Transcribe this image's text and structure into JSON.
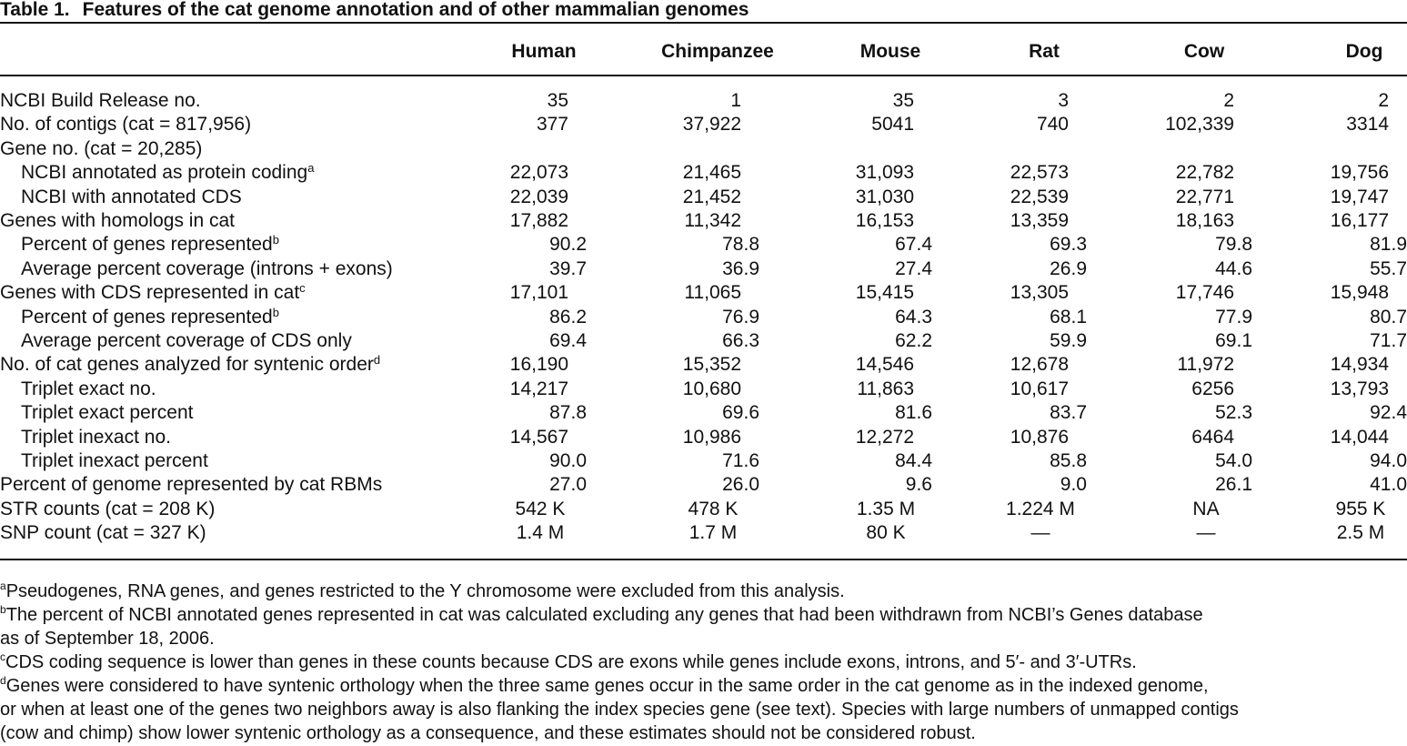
{
  "caption": {
    "label": "Table 1.",
    "title": "Features of the cat genome annotation and of other mammalian genomes"
  },
  "columns": [
    "Human",
    "Chimpanzee",
    "Mouse",
    "Rat",
    "Cow",
    "Dog"
  ],
  "rows": [
    {
      "label": "NCBI Build Release no.",
      "sup": "",
      "indent": false,
      "values": [
        "35",
        "1",
        "35",
        "3",
        "2",
        "2"
      ]
    },
    {
      "label": "No. of contigs (cat = 817,956)",
      "sup": "",
      "indent": false,
      "values": [
        "377",
        "37,922",
        "5041",
        "740",
        "102,339",
        "3314"
      ]
    },
    {
      "label": "Gene no. (cat = 20,285)",
      "sup": "",
      "indent": false,
      "values": [
        "",
        "",
        "",
        "",
        "",
        ""
      ]
    },
    {
      "label": "NCBI annotated as protein coding",
      "sup": "a",
      "indent": true,
      "values": [
        "22,073",
        "21,465",
        "31,093",
        "22,573",
        "22,782",
        "19,756"
      ]
    },
    {
      "label": "NCBI with annotated CDS",
      "sup": "",
      "indent": true,
      "values": [
        "22,039",
        "21,452",
        "31,030",
        "22,539",
        "22,771",
        "19,747"
      ]
    },
    {
      "label": "Genes with homologs in cat",
      "sup": "",
      "indent": false,
      "values": [
        "17,882",
        "11,342",
        "16,153",
        "13,359",
        "18,163",
        "16,177"
      ]
    },
    {
      "label": "Percent of genes represented",
      "sup": "b",
      "indent": true,
      "values": [
        "90.2",
        "78.8",
        "67.4",
        "69.3",
        "79.8",
        "81.9"
      ]
    },
    {
      "label": "Average percent coverage (introns + exons)",
      "sup": "",
      "indent": true,
      "values": [
        "39.7",
        "36.9",
        "27.4",
        "26.9",
        "44.6",
        "55.7"
      ]
    },
    {
      "label": "Genes with CDS represented in cat",
      "sup": "c",
      "indent": false,
      "values": [
        "17,101",
        "11,065",
        "15,415",
        "13,305",
        "17,746",
        "15,948"
      ]
    },
    {
      "label": "Percent of genes represented",
      "sup": "b",
      "indent": true,
      "values": [
        "86.2",
        "76.9",
        "64.3",
        "68.1",
        "77.9",
        "80.7"
      ]
    },
    {
      "label": "Average percent coverage of CDS only",
      "sup": "",
      "indent": true,
      "values": [
        "69.4",
        "66.3",
        "62.2",
        "59.9",
        "69.1",
        "71.7"
      ]
    },
    {
      "label": "No. of cat genes analyzed for syntenic order",
      "sup": "d",
      "indent": false,
      "values": [
        "16,190",
        "15,352",
        "14,546",
        "12,678",
        "11,972",
        "14,934"
      ]
    },
    {
      "label": "Triplet exact no.",
      "sup": "",
      "indent": true,
      "values": [
        "14,217",
        "10,680",
        "11,863",
        "10,617",
        "6256",
        "13,793"
      ]
    },
    {
      "label": "Triplet exact percent",
      "sup": "",
      "indent": true,
      "values": [
        "87.8",
        "69.6",
        "81.6",
        "83.7",
        "52.3",
        "92.4"
      ]
    },
    {
      "label": "Triplet inexact no.",
      "sup": "",
      "indent": true,
      "values": [
        "14,567",
        "10,986",
        "12,272",
        "10,876",
        "6464",
        "14,044"
      ]
    },
    {
      "label": "Triplet inexact percent",
      "sup": "",
      "indent": true,
      "values": [
        "90.0",
        "71.6",
        "84.4",
        "85.8",
        "54.0",
        "94.0"
      ]
    },
    {
      "label": "Percent of genome represented by cat RBMs",
      "sup": "",
      "indent": false,
      "values": [
        "27.0",
        "26.0",
        "9.6",
        "9.0",
        "26.1",
        "41.0"
      ]
    },
    {
      "label": "STR counts (cat = 208 K)",
      "sup": "",
      "indent": false,
      "values": [
        "542 K",
        "478 K",
        "1.35 M",
        "1.224 M",
        "NA",
        "955 K"
      ]
    },
    {
      "label": "SNP count (cat = 327 K)",
      "sup": "",
      "indent": false,
      "values": [
        "1.4 M",
        "1.7 M",
        "80 K",
        "—",
        "—",
        "2.5 M"
      ]
    }
  ],
  "footnotes": [
    {
      "mark": "a",
      "lines": [
        "Pseudogenes, RNA genes, and genes restricted to the Y chromosome were excluded from this analysis."
      ]
    },
    {
      "mark": "b",
      "lines": [
        "The percent of NCBI annotated genes represented in cat was calculated excluding any genes that had been withdrawn from NCBI’s Genes database",
        "as of September 18, 2006."
      ]
    },
    {
      "mark": "c",
      "lines": [
        "CDS coding sequence is lower than genes in these counts because CDS are exons while genes include exons, introns, and 5′- and 3′-UTRs."
      ]
    },
    {
      "mark": "d",
      "lines": [
        "Genes were considered to have syntenic orthology when the three same genes occur in the same order in the cat genome as in the indexed genome,",
        "or when at least one of the genes two neighbors away is also flanking the index species gene (see text). Species with large numbers of unmapped contigs",
        "(cow and chimp) show lower syntenic orthology as a consequence, and these estimates should not be considered robust."
      ]
    }
  ]
}
